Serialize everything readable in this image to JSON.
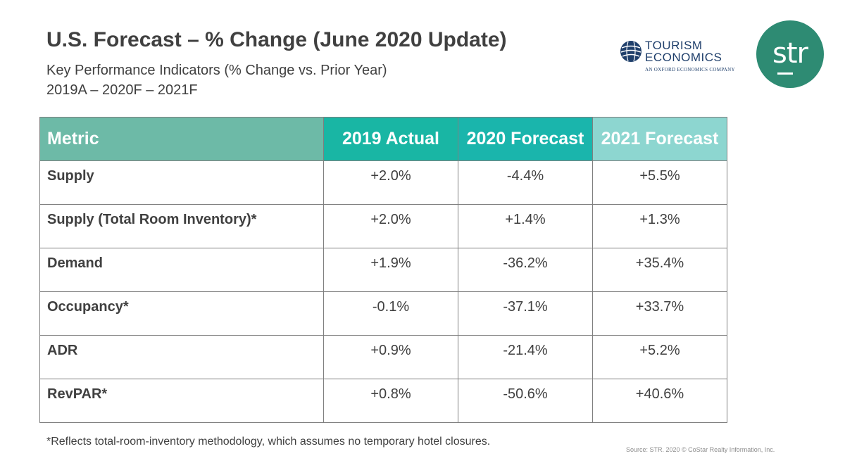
{
  "header": {
    "title": "U.S. Forecast – % Change (June 2020 Update)",
    "subtitle": "Key Performance Indicators (% Change vs. Prior Year)",
    "period": "2019A – 2020F – 2021F"
  },
  "logos": {
    "tourism_economics": {
      "line1": "TOURISM",
      "line2": "ECONOMICS",
      "tagline": "AN OXFORD ECONOMICS COMPANY",
      "icon": "globe-icon",
      "color": "#1f3f6b"
    },
    "str": {
      "text": "str",
      "color": "#2e8b73"
    }
  },
  "table": {
    "headers": [
      "Metric",
      "2019 Actual",
      "2020 Forecast",
      "2021 Forecast"
    ],
    "header_colors": [
      "#6dbaa7",
      "#19b6a4",
      "#1ab5ac",
      "#8dd6d0"
    ],
    "rows": [
      [
        "Supply",
        "+2.0%",
        "-4.4%",
        "+5.5%"
      ],
      [
        "Supply (Total Room Inventory)*",
        "+2.0%",
        "+1.4%",
        "+1.3%"
      ],
      [
        "Demand",
        "+1.9%",
        "-36.2%",
        "+35.4%"
      ],
      [
        "Occupancy*",
        "-0.1%",
        "-37.1%",
        "+33.7%"
      ],
      [
        "ADR",
        "+0.9%",
        "-21.4%",
        "+5.2%"
      ],
      [
        "RevPAR*",
        "+0.8%",
        "-50.6%",
        "+40.6%"
      ]
    ]
  },
  "footnote": "*Reflects total-room-inventory methodology, which assumes no temporary hotel closures.",
  "source": "Source: STR. 2020 © CoStar Realty Information, Inc."
}
